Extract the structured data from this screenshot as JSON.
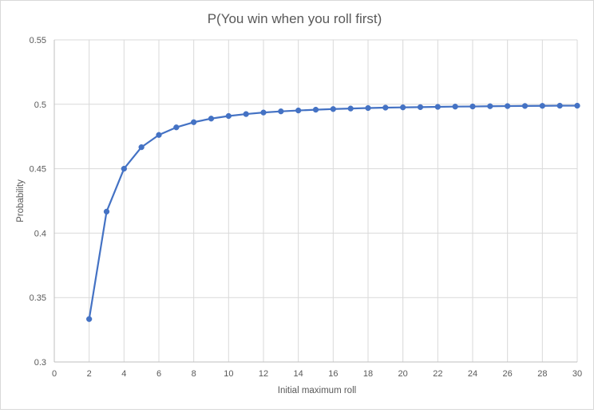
{
  "chart_data": {
    "type": "line",
    "title": "P(You win when you roll first)",
    "xlabel": "Initial maximum roll",
    "ylabel": "Probability",
    "xlim": [
      0,
      30
    ],
    "ylim": [
      0.3,
      0.55
    ],
    "x_ticks": [
      0,
      2,
      4,
      6,
      8,
      10,
      12,
      14,
      16,
      18,
      20,
      22,
      24,
      26,
      28,
      30
    ],
    "y_ticks": [
      0.3,
      0.35,
      0.4,
      0.45,
      0.5,
      0.55
    ],
    "y_tick_labels": [
      "0.3",
      "0.35",
      "0.4",
      "0.45",
      "0.5",
      "0.55"
    ],
    "grid": true,
    "legend": "none",
    "series_color": "#4472C4",
    "series": [
      {
        "x": [
          2,
          3,
          4,
          5,
          6,
          7,
          8,
          9,
          10,
          11,
          12,
          13,
          14,
          15,
          16,
          17,
          18,
          19,
          20,
          21,
          22,
          23,
          24,
          25,
          26,
          27,
          28,
          29,
          30
        ],
        "values": [
          0.3333,
          0.4167,
          0.45,
          0.4667,
          0.4762,
          0.4821,
          0.4861,
          0.4889,
          0.4909,
          0.4924,
          0.4936,
          0.4945,
          0.4952,
          0.4958,
          0.4963,
          0.4967,
          0.4971,
          0.4974,
          0.4976,
          0.4978,
          0.498,
          0.4982,
          0.4983,
          0.4985,
          0.4986,
          0.4987,
          0.4988,
          0.4989,
          0.4989
        ]
      }
    ]
  }
}
